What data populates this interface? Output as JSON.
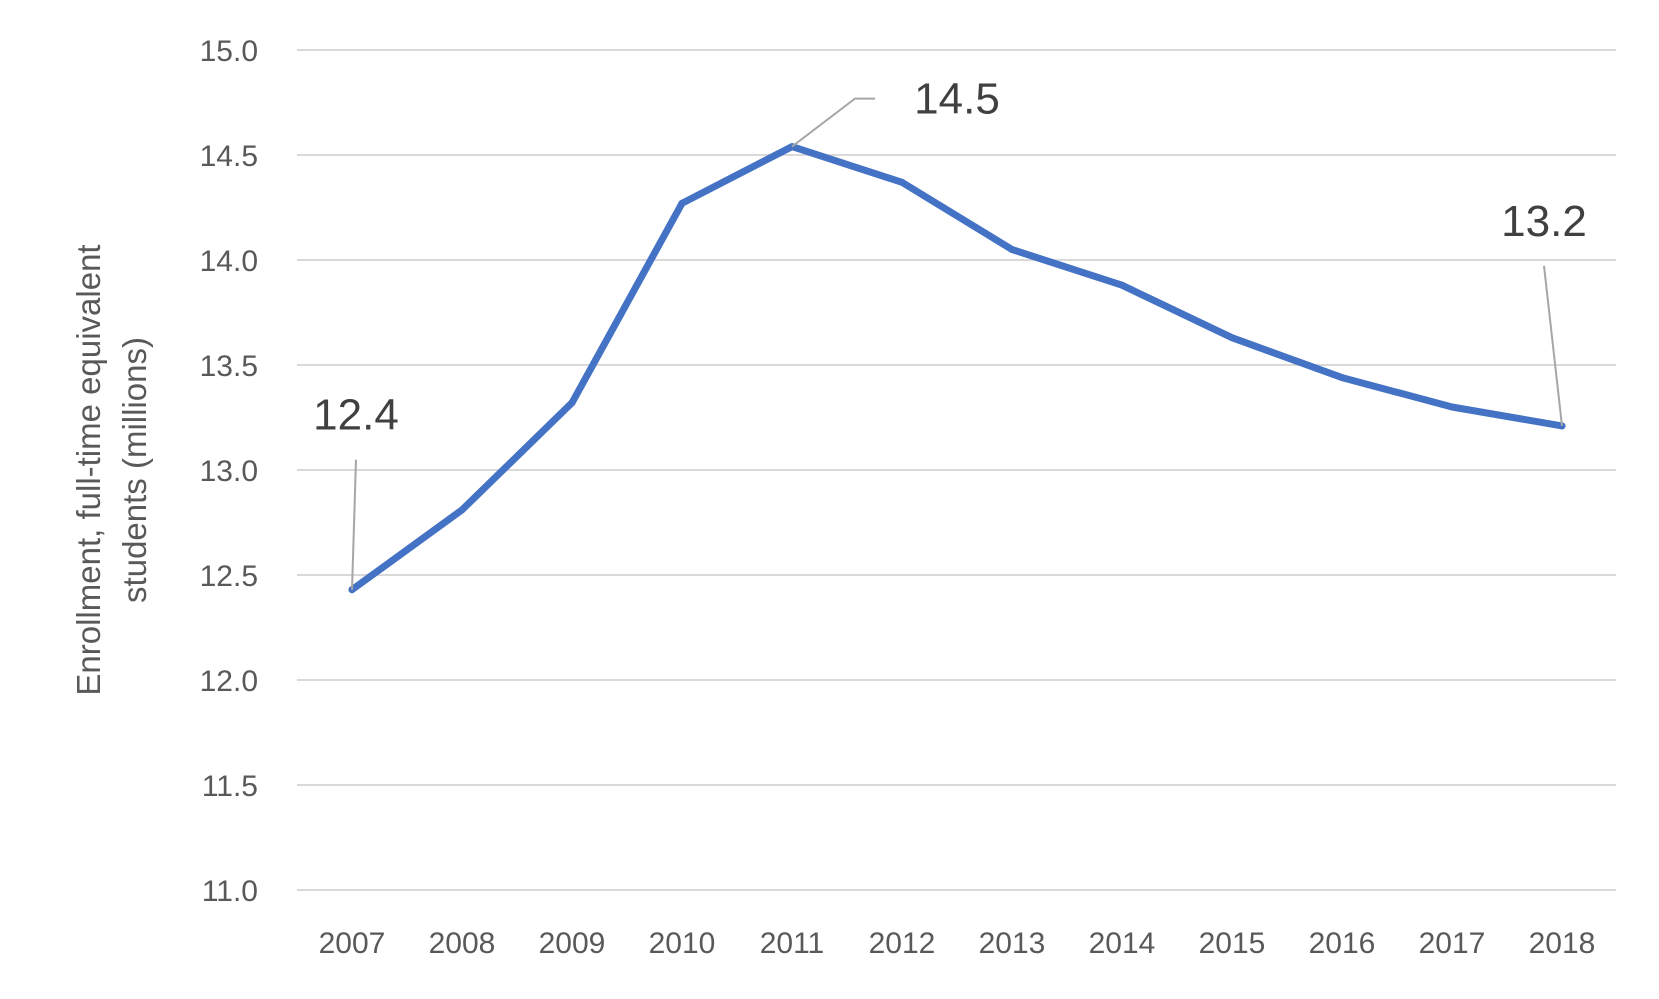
{
  "chart_data": {
    "type": "line",
    "categories": [
      "2007",
      "2008",
      "2009",
      "2010",
      "2011",
      "2012",
      "2013",
      "2014",
      "2015",
      "2016",
      "2017",
      "2018"
    ],
    "series": [
      {
        "values": [
          12.43,
          12.81,
          13.32,
          14.27,
          14.54,
          14.37,
          14.05,
          13.88,
          13.63,
          13.44,
          13.3,
          13.21
        ]
      }
    ],
    "title": "",
    "xlabel": "",
    "ylabel": "Enrollment, full-time equivalent students (millions)",
    "ylabel_lines": [
      "Enrollment, full-time equivalent",
      "students (millions)"
    ],
    "ylim": [
      11.0,
      15.0
    ],
    "yticks": [
      "11.0",
      "11.5",
      "12.0",
      "12.5",
      "13.0",
      "13.5",
      "14.0",
      "14.5",
      "15.0"
    ],
    "grid": true,
    "legend": "none",
    "annotations": [
      {
        "category": "2007",
        "text": "12.4"
      },
      {
        "category": "2011",
        "text": "14.5"
      },
      {
        "category": "2018",
        "text": "13.2"
      }
    ],
    "colors": {
      "series": "#4472c4",
      "grid": "#d9d9d9",
      "axis_text": "#595959",
      "label_text": "#404040",
      "leader": "#a6a6a6"
    }
  }
}
